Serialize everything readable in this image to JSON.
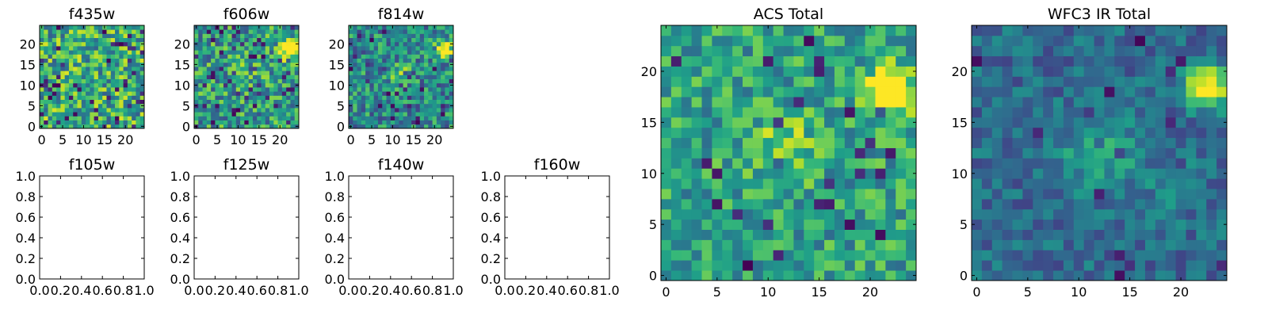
{
  "figure": {
    "panels": [
      {
        "id": "f435w",
        "title": "f435w",
        "type": "image",
        "grid_size": 25,
        "seed": 11,
        "range": [
          0.3,
          0.95
        ],
        "dark_spots": 0.08,
        "xticks": [
          "0",
          "5",
          "10",
          "15",
          "20"
        ],
        "yticks": [
          "0",
          "5",
          "10",
          "15",
          "20"
        ],
        "blobs": []
      },
      {
        "id": "f606w",
        "title": "f606w",
        "type": "image",
        "grid_size": 25,
        "seed": 23,
        "range": [
          0.25,
          0.85
        ],
        "dark_spots": 0.07,
        "xticks": [
          "0",
          "5",
          "10",
          "15",
          "20"
        ],
        "yticks": [
          "0",
          "5",
          "10",
          "15",
          "20"
        ],
        "blobs": [
          {
            "cx": 22.5,
            "cy": 18.5,
            "sigma": 1.5,
            "amp": 0.9
          },
          {
            "cx": 12,
            "cy": 13,
            "sigma": 2,
            "amp": 0.15
          }
        ]
      },
      {
        "id": "f814w",
        "title": "f814w",
        "type": "image",
        "grid_size": 25,
        "seed": 37,
        "range": [
          0.2,
          0.75
        ],
        "dark_spots": 0.05,
        "xticks": [
          "0",
          "5",
          "10",
          "15",
          "20"
        ],
        "yticks": [
          "0",
          "5",
          "10",
          "15",
          "20"
        ],
        "blobs": [
          {
            "cx": 22.5,
            "cy": 18.5,
            "sigma": 1.4,
            "amp": 0.95
          },
          {
            "cx": 11.5,
            "cy": 12.5,
            "sigma": 1.8,
            "amp": 0.3
          }
        ]
      },
      {
        "id": "f105w",
        "title": "f105w",
        "type": "empty",
        "xticks": [
          "0.0",
          "0.2",
          "0.4",
          "0.6",
          "0.8",
          "1.0"
        ],
        "yticks": [
          "0.0",
          "0.2",
          "0.4",
          "0.6",
          "0.8",
          "1.0"
        ]
      },
      {
        "id": "f125w",
        "title": "f125w",
        "type": "empty",
        "xticks": [
          "0.0",
          "0.2",
          "0.4",
          "0.6",
          "0.8",
          "1.0"
        ],
        "yticks": [
          "0.0",
          "0.2",
          "0.4",
          "0.6",
          "0.8",
          "1.0"
        ]
      },
      {
        "id": "f140w",
        "title": "f140w",
        "type": "empty",
        "xticks": [
          "0.0",
          "0.2",
          "0.4",
          "0.6",
          "0.8",
          "1.0"
        ],
        "yticks": [
          "0.0",
          "0.2",
          "0.4",
          "0.6",
          "0.8",
          "1.0"
        ]
      },
      {
        "id": "f160w",
        "title": "f160w",
        "type": "empty",
        "xticks": [
          "0.0",
          "0.2",
          "0.4",
          "0.6",
          "0.8",
          "1.0"
        ],
        "yticks": [
          "0.0",
          "0.2",
          "0.4",
          "0.6",
          "0.8",
          "1.0"
        ]
      },
      {
        "id": "acs-total",
        "title": "ACS Total",
        "type": "image",
        "grid_size": 25,
        "seed": 51,
        "range": [
          0.35,
          0.8
        ],
        "dark_spots": 0.04,
        "xticks": [
          "0",
          "5",
          "10",
          "15",
          "20"
        ],
        "yticks": [
          "0",
          "5",
          "10",
          "15",
          "20"
        ],
        "blobs": [
          {
            "cx": 22,
            "cy": 18,
            "sigma": 1.6,
            "amp": 0.7
          },
          {
            "cx": 11.5,
            "cy": 12.5,
            "sigma": 2.2,
            "amp": 0.25
          }
        ]
      },
      {
        "id": "wfc3-ir-total",
        "title": "WFC3 IR Total",
        "type": "image",
        "grid_size": 25,
        "seed": 67,
        "range": [
          0.2,
          0.5
        ],
        "dark_spots": 0.02,
        "xticks": [
          "0",
          "5",
          "10",
          "15",
          "20"
        ],
        "yticks": [
          "0",
          "5",
          "10",
          "15",
          "20"
        ],
        "blobs": [
          {
            "cx": 22.5,
            "cy": 18.5,
            "sigma": 1.4,
            "amp": 0.8
          },
          {
            "cx": 12,
            "cy": 12,
            "sigma": 2.4,
            "amp": 0.3
          },
          {
            "cx": 19,
            "cy": 9,
            "sigma": 2,
            "amp": 0.12
          }
        ]
      }
    ]
  },
  "chart_data": [
    {
      "type": "heatmap",
      "title": "f435w",
      "xlabel": "",
      "ylabel": "",
      "xlim": [
        -0.5,
        24.5
      ],
      "ylim": [
        -0.5,
        24.5
      ],
      "xticks": [
        0,
        5,
        10,
        15,
        20
      ],
      "yticks": [
        0,
        5,
        10,
        15,
        20
      ],
      "colormap": "viridis",
      "note": "25x25 pixel noise cutout"
    },
    {
      "type": "heatmap",
      "title": "f606w",
      "xlim": [
        -0.5,
        24.5
      ],
      "ylim": [
        -0.5,
        24.5
      ],
      "xticks": [
        0,
        5,
        10,
        15,
        20
      ],
      "yticks": [
        0,
        5,
        10,
        15,
        20
      ],
      "colormap": "viridis",
      "bright_source_at": [
        22,
        18
      ]
    },
    {
      "type": "heatmap",
      "title": "f814w",
      "xlim": [
        -0.5,
        24.5
      ],
      "ylim": [
        -0.5,
        24.5
      ],
      "xticks": [
        0,
        5,
        10,
        15,
        20
      ],
      "yticks": [
        0,
        5,
        10,
        15,
        20
      ],
      "colormap": "viridis",
      "bright_source_at": [
        22,
        18
      ]
    },
    {
      "type": "empty",
      "title": "f105w",
      "xlim": [
        0.0,
        1.0
      ],
      "ylim": [
        0.0,
        1.0
      ],
      "xticks": [
        0.0,
        0.2,
        0.4,
        0.6,
        0.8,
        1.0
      ],
      "yticks": [
        0.0,
        0.2,
        0.4,
        0.6,
        0.8,
        1.0
      ]
    },
    {
      "type": "empty",
      "title": "f125w",
      "xlim": [
        0.0,
        1.0
      ],
      "ylim": [
        0.0,
        1.0
      ],
      "xticks": [
        0.0,
        0.2,
        0.4,
        0.6,
        0.8,
        1.0
      ],
      "yticks": [
        0.0,
        0.2,
        0.4,
        0.6,
        0.8,
        1.0
      ]
    },
    {
      "type": "empty",
      "title": "f140w",
      "xlim": [
        0.0,
        1.0
      ],
      "ylim": [
        0.0,
        1.0
      ],
      "xticks": [
        0.0,
        0.2,
        0.4,
        0.6,
        0.8,
        1.0
      ],
      "yticks": [
        0.0,
        0.2,
        0.4,
        0.6,
        0.8,
        1.0
      ]
    },
    {
      "type": "empty",
      "title": "f160w",
      "xlim": [
        0.0,
        1.0
      ],
      "ylim": [
        0.0,
        1.0
      ],
      "xticks": [
        0.0,
        0.2,
        0.4,
        0.6,
        0.8,
        1.0
      ],
      "yticks": [
        0.0,
        0.2,
        0.4,
        0.6,
        0.8,
        1.0
      ]
    },
    {
      "type": "heatmap",
      "title": "ACS Total",
      "xlim": [
        -0.5,
        24.5
      ],
      "ylim": [
        -0.5,
        24.5
      ],
      "xticks": [
        0,
        5,
        10,
        15,
        20
      ],
      "yticks": [
        0,
        5,
        10,
        15,
        20
      ],
      "colormap": "viridis",
      "bright_source_at": [
        22,
        18
      ]
    },
    {
      "type": "heatmap",
      "title": "WFC3 IR Total",
      "xlim": [
        -0.5,
        24.5
      ],
      "ylim": [
        -0.5,
        24.5
      ],
      "xticks": [
        0,
        5,
        10,
        15,
        20
      ],
      "yticks": [
        0,
        5,
        10,
        15,
        20
      ],
      "colormap": "viridis",
      "bright_source_at": [
        22,
        18
      ]
    }
  ]
}
